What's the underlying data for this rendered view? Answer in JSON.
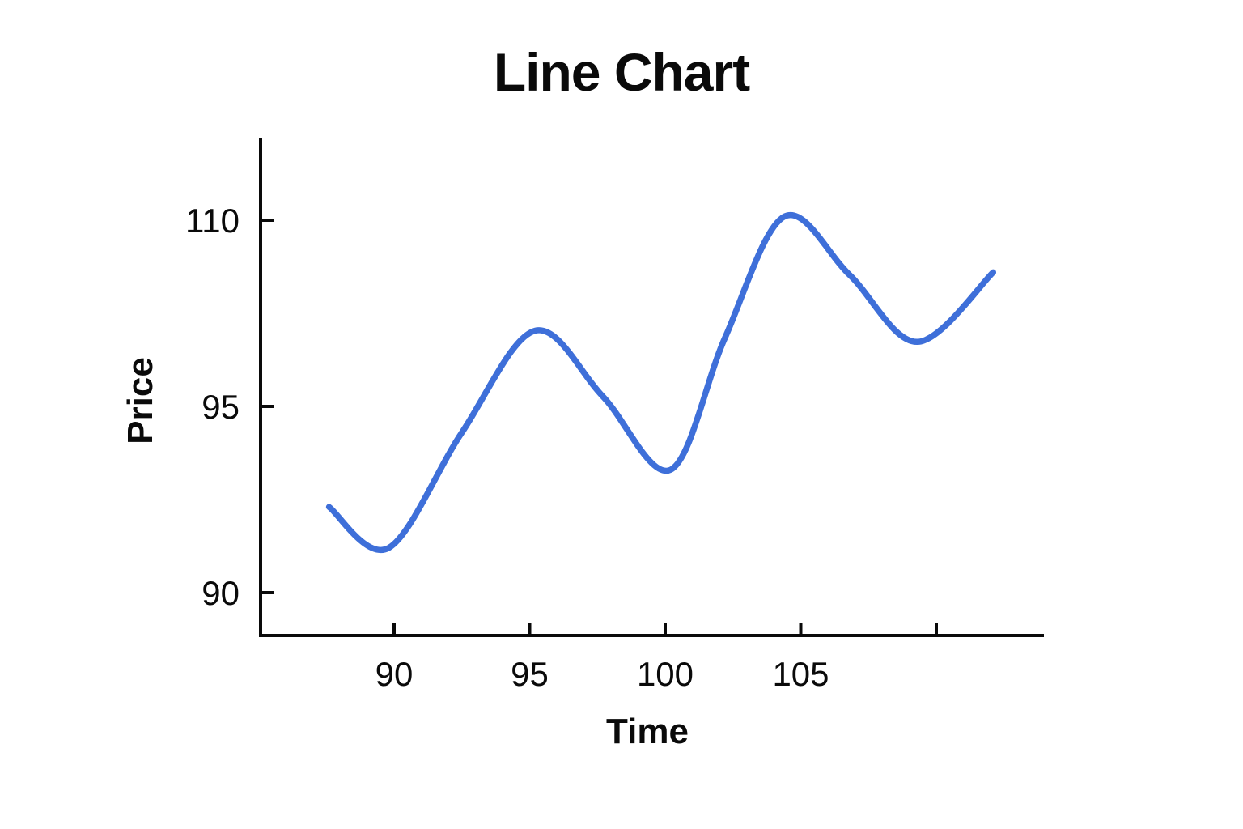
{
  "chart_data": {
    "type": "line",
    "title": "Line Chart",
    "xlabel": "Time",
    "ylabel": "Price",
    "background": "#ffffff",
    "axis_color": "#0a0a0a",
    "grid": false,
    "legend": false,
    "x_ticks": [
      {
        "value": 90,
        "label": "90"
      },
      {
        "value": 95,
        "label": "95"
      },
      {
        "value": 100,
        "label": "100"
      },
      {
        "value": 105,
        "label": "105"
      },
      {
        "value": 110,
        "label": ""
      }
    ],
    "y_ticks": [
      {
        "value": 110,
        "label": "110"
      },
      {
        "value": 95,
        "label": "95"
      },
      {
        "value": 90,
        "label": "90"
      }
    ],
    "x_range": [
      87.6,
      112.1
    ],
    "series": [
      {
        "name": "Price",
        "color": "#3E6FD9",
        "points": [
          {
            "x": 87.6,
            "y": 92.3
          },
          {
            "x": 89.8,
            "y": 91.2
          },
          {
            "x": 92.5,
            "y": 94.3
          },
          {
            "x": 95.2,
            "y": 101.1
          },
          {
            "x": 97.7,
            "y": 95.8
          },
          {
            "x": 100.2,
            "y": 93.3
          },
          {
            "x": 102.2,
            "y": 100.5
          },
          {
            "x": 104.4,
            "y": 110.3
          },
          {
            "x": 106.8,
            "y": 105.6
          },
          {
            "x": 109.3,
            "y": 100.2
          },
          {
            "x": 112.1,
            "y": 105.8
          }
        ]
      }
    ]
  }
}
